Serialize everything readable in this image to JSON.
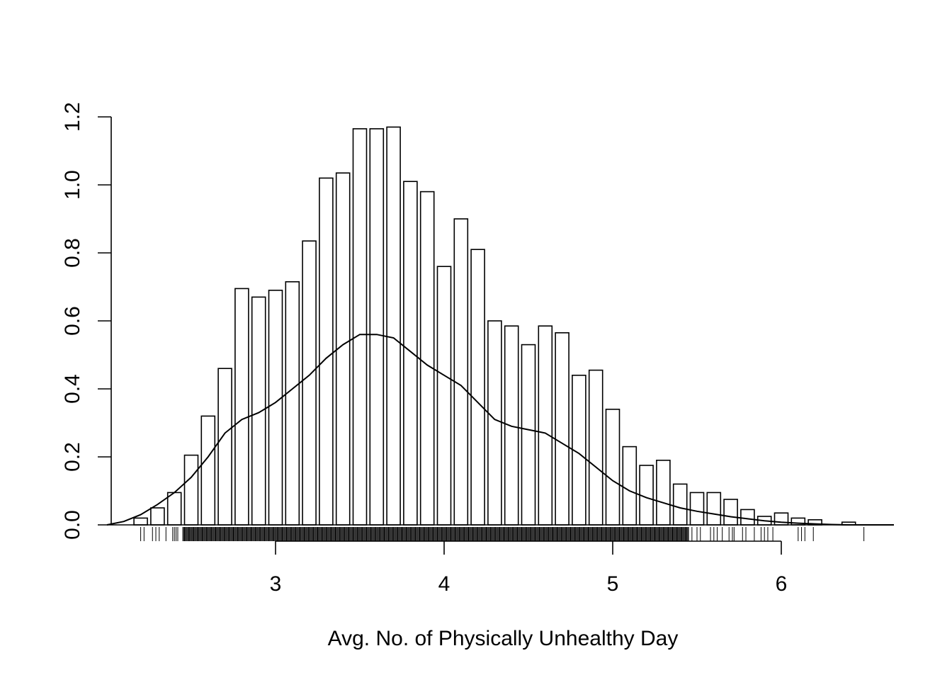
{
  "chart_data": {
    "type": "bar",
    "title": "",
    "xlabel": "Avg. No. of Physically Unhealthy Day",
    "ylabel": "",
    "xlim": [
      2.0,
      6.67
    ],
    "ylim": [
      0,
      1.2
    ],
    "x_ticks": [
      3,
      4,
      5,
      6
    ],
    "x_tick_labels": [
      "3",
      "4",
      "5",
      "6"
    ],
    "y_ticks": [
      0.0,
      0.2,
      0.4,
      0.6,
      0.8,
      1.0,
      1.2
    ],
    "y_tick_labels": [
      "0.0",
      "0.2",
      "0.4",
      "0.6",
      "0.8",
      "1.0",
      "1.2"
    ],
    "grid": false,
    "legend": "none",
    "bin_width": 0.1,
    "bin_starts": [
      2.2,
      2.3,
      2.4,
      2.5,
      2.6,
      2.7,
      2.8,
      2.9,
      3.0,
      3.1,
      3.2,
      3.3,
      3.4,
      3.5,
      3.6,
      3.7,
      3.8,
      3.9,
      4.0,
      4.1,
      4.2,
      4.3,
      4.4,
      4.5,
      4.6,
      4.7,
      4.8,
      4.9,
      5.0,
      5.1,
      5.2,
      5.3,
      5.4,
      5.5,
      5.6,
      5.7,
      5.8,
      5.9,
      6.0,
      6.1,
      6.2,
      6.3,
      6.4
    ],
    "densities": [
      0.02,
      0.05,
      0.095,
      0.205,
      0.32,
      0.46,
      0.695,
      0.67,
      0.69,
      0.715,
      0.835,
      1.02,
      1.035,
      1.165,
      1.165,
      1.17,
      1.01,
      0.98,
      0.76,
      0.9,
      0.81,
      0.6,
      0.585,
      0.53,
      0.585,
      0.565,
      0.44,
      0.455,
      0.34,
      0.23,
      0.175,
      0.19,
      0.12,
      0.095,
      0.095,
      0.075,
      0.045,
      0.025,
      0.035,
      0.02,
      0.015,
      0.0,
      0.008
    ],
    "density_curve": {
      "x": [
        2.0,
        2.1,
        2.2,
        2.3,
        2.4,
        2.5,
        2.6,
        2.7,
        2.8,
        2.9,
        3.0,
        3.1,
        3.2,
        3.3,
        3.4,
        3.5,
        3.6,
        3.7,
        3.8,
        3.9,
        4.0,
        4.1,
        4.2,
        4.3,
        4.4,
        4.5,
        4.6,
        4.7,
        4.8,
        4.9,
        5.0,
        5.1,
        5.2,
        5.3,
        5.4,
        5.5,
        5.6,
        5.7,
        5.8,
        5.9,
        6.0,
        6.1,
        6.2,
        6.3,
        6.4,
        6.5,
        6.6
      ],
      "y": [
        0.0,
        0.01,
        0.03,
        0.06,
        0.095,
        0.14,
        0.2,
        0.27,
        0.31,
        0.33,
        0.36,
        0.4,
        0.44,
        0.49,
        0.53,
        0.56,
        0.56,
        0.55,
        0.51,
        0.47,
        0.44,
        0.41,
        0.36,
        0.31,
        0.29,
        0.28,
        0.27,
        0.24,
        0.21,
        0.17,
        0.13,
        0.1,
        0.08,
        0.065,
        0.05,
        0.04,
        0.032,
        0.024,
        0.018,
        0.012,
        0.008,
        0.005,
        0.003,
        0.001,
        0.0,
        0.0,
        0.0
      ]
    },
    "rug_dense_range": [
      2.45,
      5.45
    ],
    "rug_sparse": [
      2.2,
      2.22,
      2.27,
      2.29,
      2.31,
      2.35,
      2.39,
      2.4,
      2.41,
      2.42,
      5.47,
      5.5,
      5.52,
      5.58,
      5.6,
      5.62,
      5.65,
      5.69,
      5.71,
      5.72,
      5.77,
      5.79,
      5.84,
      5.88,
      5.9,
      5.92,
      5.95,
      6.1,
      6.12,
      6.14,
      6.19,
      6.49
    ]
  }
}
